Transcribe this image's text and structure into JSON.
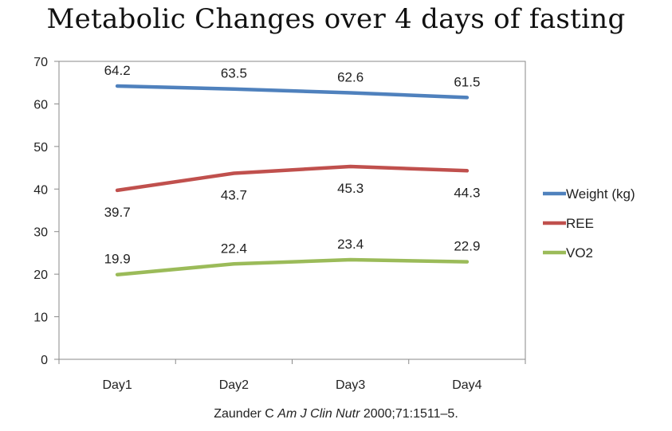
{
  "chart_data": {
    "type": "line",
    "title": "Metabolic Changes over 4 days of fasting",
    "categories": [
      "Day1",
      "Day2",
      "Day3",
      "Day4"
    ],
    "series": [
      {
        "name": "Weight (kg)",
        "values": [
          64.2,
          63.5,
          62.6,
          61.5
        ],
        "color": "#4f81bd",
        "label_position": "above"
      },
      {
        "name": "REE",
        "values": [
          39.7,
          43.7,
          45.3,
          44.3
        ],
        "color": "#c0504d",
        "label_position": "below"
      },
      {
        "name": "VO2",
        "values": [
          19.9,
          22.4,
          23.4,
          22.9
        ],
        "color": "#9bbb59",
        "label_position": "above"
      }
    ],
    "ylim": [
      0,
      70
    ],
    "yticks": [
      0,
      10,
      20,
      30,
      40,
      50,
      60,
      70
    ],
    "xlabel": "",
    "ylabel": "",
    "grid": false,
    "legend_position": "right"
  },
  "citation": {
    "author": "Zaunder C ",
    "journal": "Am J Clin Nutr",
    "details": " 2000;71:1511–5."
  }
}
